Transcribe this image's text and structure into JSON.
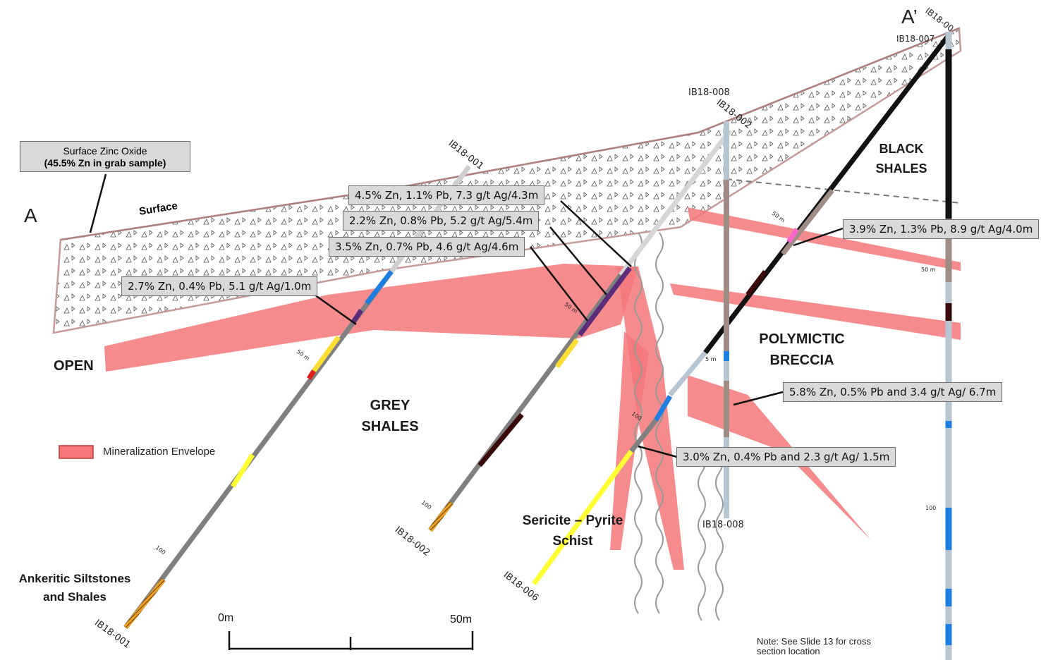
{
  "section": {
    "end_left": "A",
    "end_right": "A’",
    "surface_label": "Surface",
    "callout": {
      "line1": "Surface Zinc Oxide",
      "line2": "(45.5% Zn in grab sample)"
    }
  },
  "units": {
    "open": "OPEN",
    "grey_shales_1": "GREY",
    "grey_shales_2": "SHALES",
    "black_shales_1": "BLACK",
    "black_shales_2": "SHALES",
    "breccia_1": "POLYMICTIC",
    "breccia_2": "BRECCIA",
    "sericite_1": "Sericite – Pyrite",
    "sericite_2": "Schist",
    "ankeritic_1": "Ankeritic Siltstones",
    "ankeritic_2": "and Shales"
  },
  "intercepts": [
    {
      "text": "4.5% Zn, 1.1% Pb, 7.3 g/t Ag/4.3m"
    },
    {
      "text": "2.2% Zn, 0.8% Pb, 5.2 g/t Ag/5.4m"
    },
    {
      "text": "3.5% Zn, 0.7% Pb, 4.6 g/t Ag/4.6m"
    },
    {
      "text": "2.7% Zn, 0.4% Pb, 5.1 g/t Ag/1.0m"
    },
    {
      "text": "3.9% Zn, 1.3% Pb, 8.9 g/t Ag/4.0m"
    },
    {
      "text": "5.8% Zn, 0.5% Pb and 3.4 g/t Ag/ 6.7m"
    },
    {
      "text": "3.0% Zn, 0.4% Pb and 2.3 g/t Ag/ 1.5m"
    }
  ],
  "holes": {
    "h001_top": "IB18-001",
    "h001_bottom": "IB18-001",
    "h002_top": "IB18-002",
    "h002_bottom": "IB18-002",
    "h006_bottom": "IB18-006",
    "h008_top": "IB18-008",
    "h008_bottom": "IB18-008",
    "h007_top": "IB18-007",
    "h00x_top": "IB18-00"
  },
  "depth_ticks": {
    "t50a": "50 m",
    "t100a": "100",
    "t50b": "50 m",
    "t100b": "100",
    "t50c": "50 m",
    "t100c": "100",
    "t50d": "50 m",
    "t100d": "100",
    "t50e": "5 m"
  },
  "legend": {
    "label": "Mineralization Envelope",
    "color": "#f4777a"
  },
  "scale": {
    "left": "0m",
    "right": "50m"
  },
  "note": {
    "line1": "Note: See Slide 13 for cross",
    "line2": "section location"
  },
  "colors": {
    "envelope": "#f4777a",
    "oxide_outline": "#c8a0a0",
    "core_grey": "#7f7f7f",
    "black_shale": "#111111",
    "sericite": "#ffff33",
    "breccia": "#b7c4d2",
    "blue": "#1f7fe0"
  }
}
